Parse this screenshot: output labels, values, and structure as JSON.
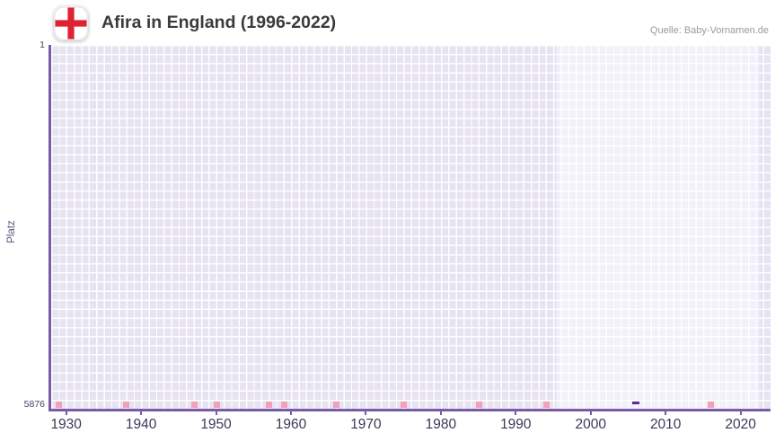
{
  "header": {
    "title": "Afira in England (1996-2022)",
    "source": "Quelle: Baby-Vornamen.de"
  },
  "axes": {
    "y_label": "Platz",
    "y_top_label": "1",
    "y_bottom_label": "5876",
    "x_ticks": [
      1930,
      1940,
      1950,
      1960,
      1970,
      1980,
      1990,
      2000,
      2010,
      2020
    ]
  },
  "chart_data": {
    "type": "scatter",
    "title": "Afira in England (1996-2022)",
    "ylabel": "Platz",
    "y_axis": {
      "min": 1,
      "max": 5876,
      "inverted": true
    },
    "x_axis": {
      "min": 1928,
      "max": 2024
    },
    "highlight_period": {
      "start": 1996,
      "end": 2022
    },
    "points": [
      {
        "year": 2006,
        "rank": 5800
      }
    ],
    "bottom_marks_years": [
      1929,
      1938,
      1947,
      1950,
      1957,
      1959,
      1966,
      1975,
      1985,
      1994,
      2016
    ],
    "colors": {
      "plot_bg": "#e7e3f1",
      "highlight_bg": "#f2f0f9",
      "axis": "#7a5ba6",
      "point": "#5b2f91",
      "bottom_mark": "#f0a3b8",
      "flag_cross": "#dd2333"
    }
  }
}
